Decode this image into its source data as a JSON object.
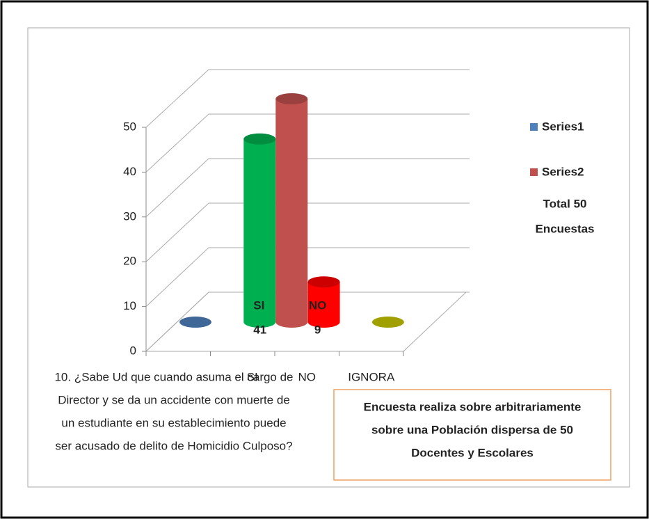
{
  "chart_data": {
    "type": "bar3d",
    "categories": [
      null,
      "SI",
      "NO",
      "IGNORA"
    ],
    "series": [
      {
        "name": "Series1",
        "color": "#4f81bd",
        "point_colors": [
          "#4f81bd",
          "#00b050",
          "#ff0000",
          "#c8c800"
        ],
        "values": [
          0,
          41,
          9,
          0
        ]
      },
      {
        "name": "Series2",
        "color": "#c0504d",
        "values": [
          null,
          50,
          null,
          null
        ]
      }
    ],
    "ylim": [
      0,
      50
    ],
    "yticks": [
      0,
      10,
      20,
      30,
      40,
      50
    ],
    "grid": true,
    "legend": "right",
    "legend_note": [
      "Total 50",
      "Encuestas"
    ],
    "question": [
      "10. ¿Sabe Ud que cuando asuma el cargo de",
      "Director y se da un accidente con muerte de",
      "un estudiante  en su establecimiento puede",
      "ser acusado de delito de Homicidio Culposo?"
    ],
    "note_box": [
      "Encuesta realiza sobre arbitrariamente",
      "sobre una Población dispersa de 50",
      "Docentes y Escolares"
    ]
  }
}
